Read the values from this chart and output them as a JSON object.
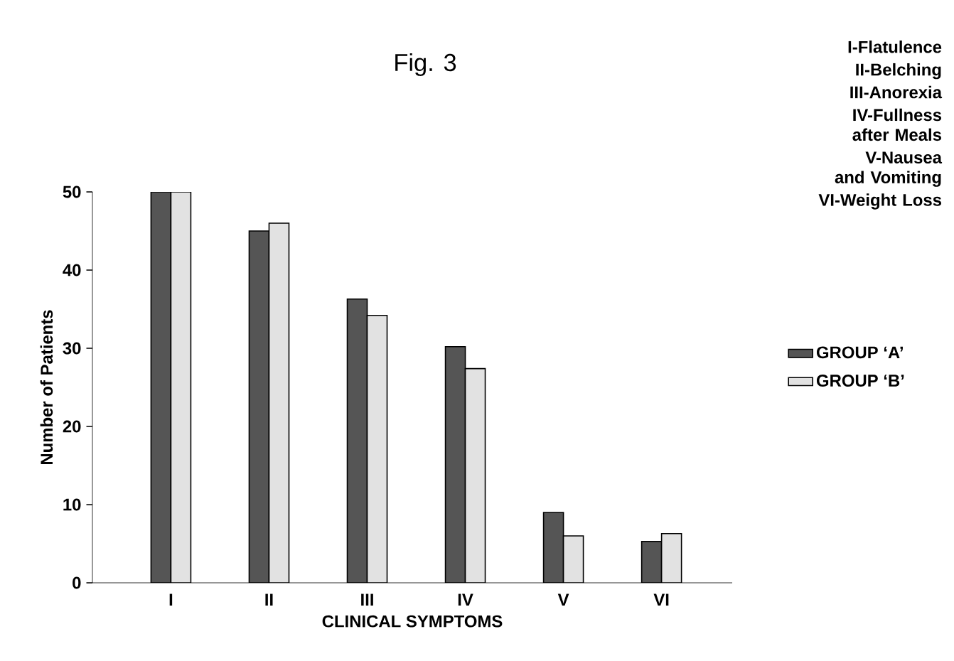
{
  "chart_data": {
    "type": "bar",
    "title": "Fig. 3",
    "xlabel": "CLINICAL SYMPTOMS",
    "ylabel": "Number of Patients",
    "categories": [
      "I",
      "II",
      "III",
      "IV",
      "V",
      "VI"
    ],
    "series": [
      {
        "name": "GROUP ‘A’",
        "color": "#555555",
        "values": [
          50,
          45,
          36.3,
          30.2,
          9,
          5.3
        ]
      },
      {
        "name": "GROUP ‘B’",
        "color": "#e2e2e2",
        "values": [
          50,
          46,
          34.2,
          27.4,
          6,
          6.3
        ]
      }
    ],
    "ylim": [
      0,
      50
    ],
    "yticks": [
      0,
      10,
      20,
      30,
      40,
      50
    ],
    "legend": "right",
    "grid": false,
    "annotations": [
      "I-Flatulence",
      "II-Belching",
      "III-Anorexia",
      "IV-Fullness after Meals",
      "V-Nausea and Vomiting",
      "VI-Weight Loss"
    ]
  }
}
